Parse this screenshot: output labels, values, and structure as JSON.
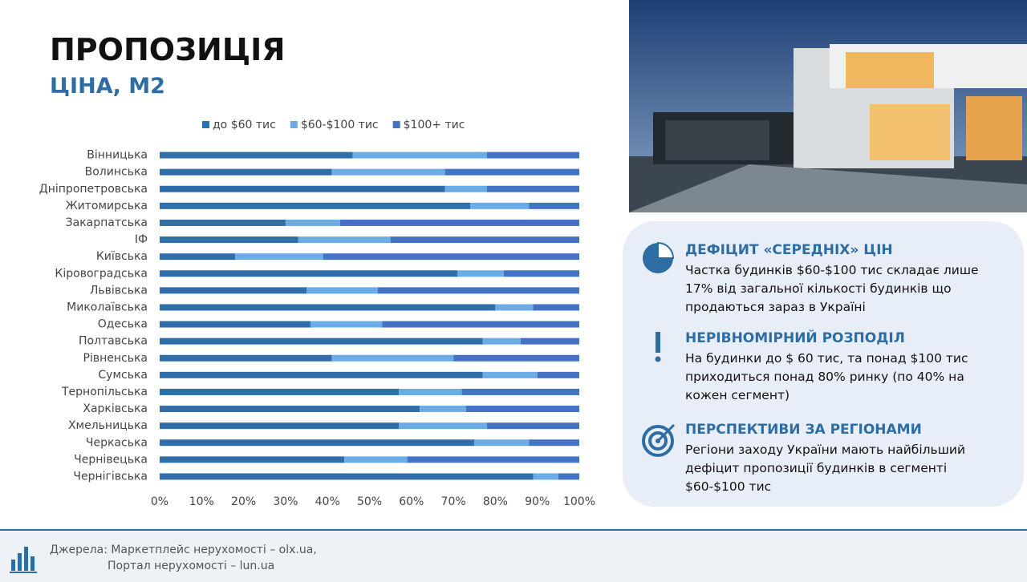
{
  "header": {
    "title": "ПРОПОЗИЦІЯ",
    "subtitle": "ЦІНА, М2"
  },
  "chart_data": {
    "type": "stacked_barh",
    "grid": false,
    "categories": [
      "Вінницька",
      "Волинська",
      "Дніпропетровська",
      "Житомирська",
      "Закарпатська",
      "ІФ",
      "Київська",
      "Кіровоградська",
      "Львівська",
      "Миколаївська",
      "Одеська",
      "Полтавська",
      "Рівненська",
      "Сумська",
      "Тернопільська",
      "Харківська",
      "Хмельницька",
      "Черкаська",
      "Чернівецька",
      "Чернігівська"
    ],
    "series": [
      {
        "name": "до $60 тис",
        "color": "#2f6ea9",
        "values": [
          46,
          41,
          68,
          74,
          30,
          33,
          18,
          71,
          35,
          80,
          36,
          77,
          41,
          77,
          57,
          62,
          57,
          75,
          44,
          89
        ]
      },
      {
        "name": "$60-$100 тис",
        "color": "#6aace6",
        "values": [
          32,
          27,
          10,
          14,
          13,
          22,
          21,
          11,
          17,
          9,
          17,
          9,
          29,
          13,
          15,
          11,
          21,
          13,
          15,
          6
        ]
      },
      {
        "name": "$100+ тис",
        "color": "#4472c4",
        "values": [
          22,
          32,
          22,
          12,
          57,
          45,
          61,
          18,
          48,
          11,
          47,
          14,
          30,
          10,
          28,
          27,
          22,
          12,
          41,
          5
        ]
      }
    ],
    "xlim": [
      0,
      100
    ],
    "xticks": [
      {
        "value": 0,
        "label": "0%"
      },
      {
        "value": 10,
        "label": "10%"
      },
      {
        "value": 20,
        "label": "20%"
      },
      {
        "value": 30,
        "label": "30%"
      },
      {
        "value": 40,
        "label": "40%"
      },
      {
        "value": 50,
        "label": "50%"
      },
      {
        "value": 60,
        "label": "60%"
      },
      {
        "value": 70,
        "label": "70%"
      },
      {
        "value": 80,
        "label": "80%"
      },
      {
        "value": 90,
        "label": "90%"
      },
      {
        "value": 100,
        "label": "100%"
      }
    ]
  },
  "panel": {
    "items": [
      {
        "heading": "ДЕФІЦИТ «СЕРЕДНІХ» ЦІН",
        "text": "Частка будинків $60-$100 тис складає лише 17% від загальної кількості будинків що продаються зараз в Україні"
      },
      {
        "heading": "НЕРІВНОМІРНИЙ РОЗПОДІЛ",
        "text": "На будинки до $ 60 тис, та понад $100 тис приходиться понад 80% ринку (по 40% на кожен сегмент)"
      },
      {
        "heading": "ПЕРСПЕКТИВИ ЗА РЕГІОНАМИ",
        "text": "Регіони заходу України мають найбільший дефіцит пропозиції будинків в сегменті $60-$100 тис"
      }
    ]
  },
  "footer": {
    "lines": [
      "Джерела: Маркетплейс нерухомості – olx.ua,",
      "Портал нерухомості – lun.ua"
    ]
  }
}
